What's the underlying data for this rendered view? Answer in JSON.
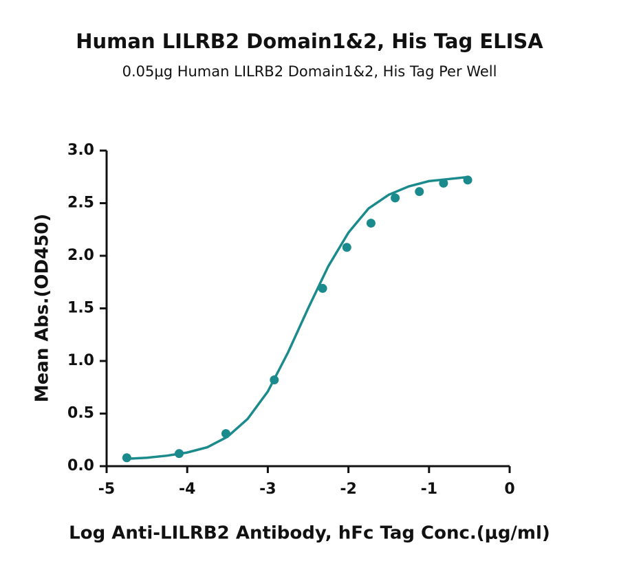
{
  "chart_data": {
    "type": "scatter",
    "title": "Human LILRB2 Domain1&2, His Tag ELISA",
    "subtitle": "0.05μg Human LILRB2 Domain1&2, His Tag Per Well",
    "x_label": "Log Anti-LILRB2 Antibody, hFc Tag Conc.(μg/ml)",
    "y_label": "Mean Abs.(OD450)",
    "xlim": [
      -5,
      0
    ],
    "xticks": [
      -5,
      -4,
      -3,
      -2,
      -1,
      0
    ],
    "ylim": [
      0,
      3
    ],
    "yticks": [
      {
        "value": 0,
        "label": "0.0"
      },
      0.5,
      {
        "value": 1,
        "label": "1.0"
      },
      1.5,
      {
        "value": 2,
        "label": "2.0"
      },
      2.5,
      {
        "value": 3,
        "label": "3.0"
      }
    ],
    "series": [
      {
        "type": "scatter",
        "color": "#1b8a8c",
        "x": [
          -4.75,
          -4.1,
          -3.52,
          -2.92,
          -2.32,
          -2.02,
          -1.72,
          -1.42,
          -1.12,
          -0.82,
          -0.52
        ],
        "values": [
          0.08,
          0.12,
          0.31,
          0.82,
          1.69,
          2.08,
          2.31,
          2.55,
          2.61,
          2.69,
          2.72
        ]
      },
      {
        "type": "line",
        "color": "#1b8a8c",
        "x": [
          -4.75,
          -4.5,
          -4.25,
          -4.0,
          -3.75,
          -3.5,
          -3.25,
          -3.0,
          -2.75,
          -2.5,
          -2.25,
          -2.0,
          -1.75,
          -1.5,
          -1.25,
          -1.0,
          -0.75,
          -0.5
        ],
        "values": [
          0.07,
          0.08,
          0.1,
          0.13,
          0.18,
          0.28,
          0.45,
          0.71,
          1.08,
          1.5,
          1.9,
          2.22,
          2.45,
          2.58,
          2.66,
          2.71,
          2.73,
          2.75
        ]
      }
    ]
  }
}
